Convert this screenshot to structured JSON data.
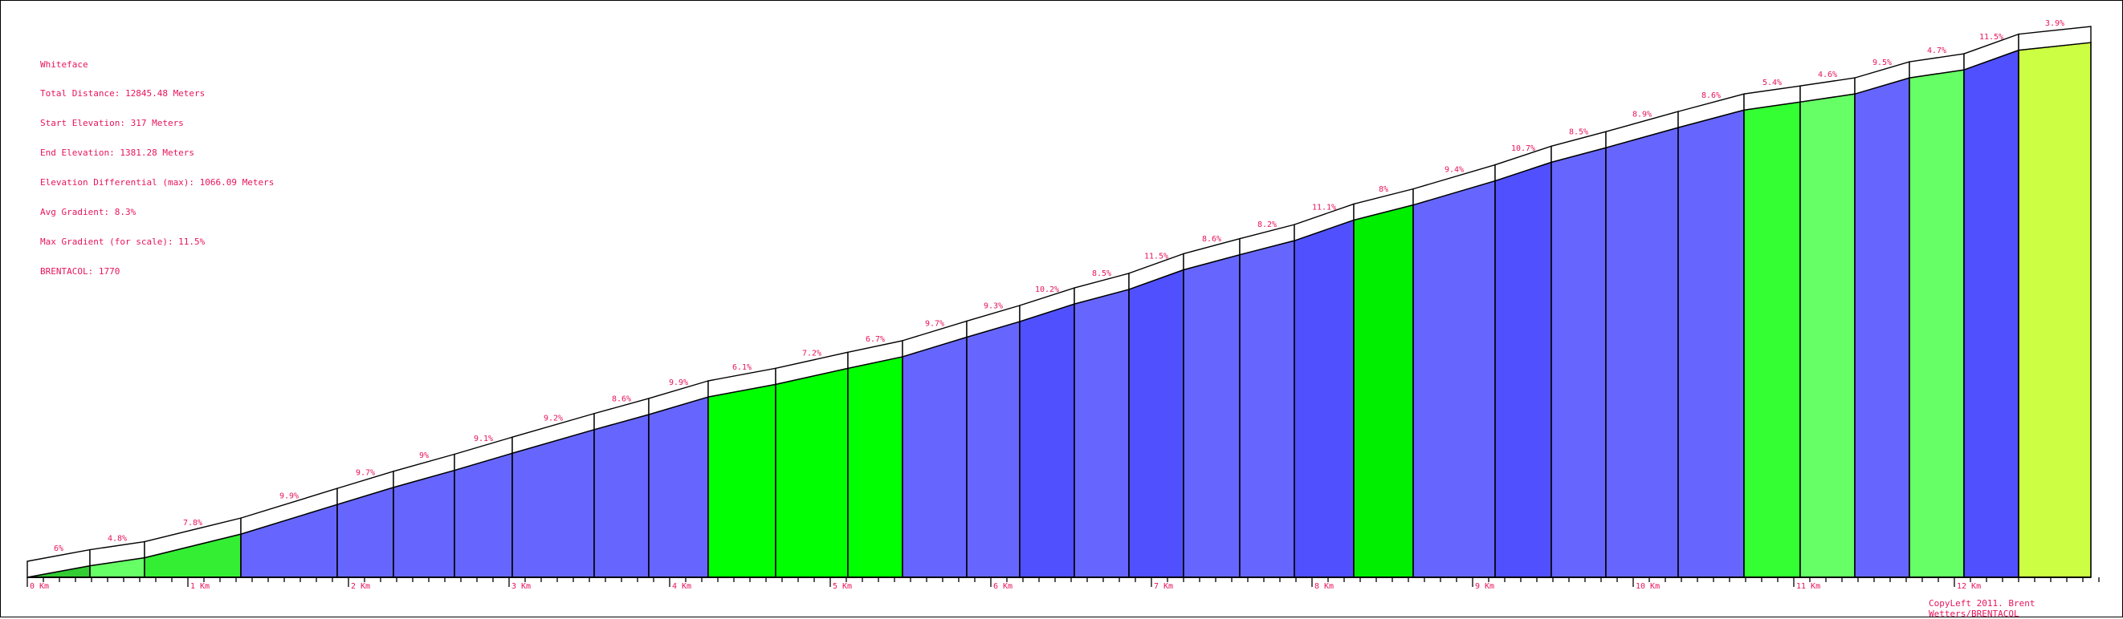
{
  "info": {
    "name": "Whiteface",
    "total_distance": "Total Distance: 12845.48 Meters",
    "start_elevation": "Start Elevation: 317 Meters",
    "end_elevation": "End Elevation: 1381.28 Meters",
    "elevation_differential": "Elevation Differential (max): 1066.09 Meters",
    "avg_gradient": "Avg Gradient: 8.3%",
    "max_gradient": "Max Gradient (for scale): 11.5%",
    "brentacol": "BRENTACOL: 1770"
  },
  "copyright": "CopyLeft 2011. Brent Wetters/BRENTACOL",
  "colors": {
    "label": "#e8145a",
    "outline": "#000000"
  },
  "chart_data": {
    "type": "area",
    "xlabel": "",
    "ylabel": "",
    "xlim": [
      0,
      12.85
    ],
    "x_unit": "Km",
    "x_ticks": [
      "0 Km",
      "1 Km",
      "2 Km",
      "3 Km",
      "4 Km",
      "5 Km",
      "6 Km",
      "7 Km",
      "8 Km",
      "9 Km",
      "10 Km",
      "11 Km",
      "12 Km"
    ],
    "segments": [
      {
        "x0": 0.0,
        "x1": 0.39,
        "y0": 317,
        "y1": 340,
        "label": "6%",
        "color": "#33cc33"
      },
      {
        "x0": 0.39,
        "x1": 0.73,
        "y0": 340,
        "y1": 356,
        "label": "4.8%",
        "color": "#66ff66"
      },
      {
        "x0": 0.73,
        "x1": 1.33,
        "y0": 356,
        "y1": 403,
        "label": "7.8%",
        "color": "#33ee33"
      },
      {
        "x0": 1.33,
        "x1": 1.93,
        "y0": 403,
        "y1": 462,
        "label": "9.9%",
        "color": "#6666ff"
      },
      {
        "x0": 1.93,
        "x1": 2.28,
        "y0": 462,
        "y1": 496,
        "label": "9.7%",
        "color": "#6666ff"
      },
      {
        "x0": 2.28,
        "x1": 2.66,
        "y0": 496,
        "y1": 530,
        "label": "9%",
        "color": "#6666ff"
      },
      {
        "x0": 2.66,
        "x1": 3.02,
        "y0": 530,
        "y1": 564,
        "label": "9.1%",
        "color": "#6666ff"
      },
      {
        "x0": 3.02,
        "x1": 3.53,
        "y0": 564,
        "y1": 611,
        "label": "9.2%",
        "color": "#6666ff"
      },
      {
        "x0": 3.53,
        "x1": 3.87,
        "y0": 611,
        "y1": 641,
        "label": "8.6%",
        "color": "#6666ff"
      },
      {
        "x0": 3.87,
        "x1": 4.24,
        "y0": 641,
        "y1": 676,
        "label": "9.9%",
        "color": "#6666ff"
      },
      {
        "x0": 4.24,
        "x1": 4.66,
        "y0": 676,
        "y1": 701,
        "label": "6.1%",
        "color": "#00ff00"
      },
      {
        "x0": 4.66,
        "x1": 5.11,
        "y0": 701,
        "y1": 733,
        "label": "7.2%",
        "color": "#00ff00"
      },
      {
        "x0": 5.11,
        "x1": 5.45,
        "y0": 733,
        "y1": 756,
        "label": "6.7%",
        "color": "#00ff00"
      },
      {
        "x0": 5.45,
        "x1": 5.85,
        "y0": 756,
        "y1": 795,
        "label": "9.7%",
        "color": "#6666ff"
      },
      {
        "x0": 5.85,
        "x1": 6.18,
        "y0": 795,
        "y1": 826,
        "label": "9.3%",
        "color": "#6666ff"
      },
      {
        "x0": 6.18,
        "x1": 6.52,
        "y0": 826,
        "y1": 861,
        "label": "10.2%",
        "color": "#5050ff"
      },
      {
        "x0": 6.52,
        "x1": 6.86,
        "y0": 861,
        "y1": 890,
        "label": "8.5%",
        "color": "#6666ff"
      },
      {
        "x0": 6.86,
        "x1": 7.2,
        "y0": 890,
        "y1": 929,
        "label": "11.5%",
        "color": "#5050ff"
      },
      {
        "x0": 7.2,
        "x1": 7.55,
        "y0": 929,
        "y1": 959,
        "label": "8.6%",
        "color": "#6666ff"
      },
      {
        "x0": 7.55,
        "x1": 7.89,
        "y0": 959,
        "y1": 987,
        "label": "8.2%",
        "color": "#6666ff"
      },
      {
        "x0": 7.89,
        "x1": 8.26,
        "y0": 987,
        "y1": 1028,
        "label": "11.1%",
        "color": "#5050ff"
      },
      {
        "x0": 8.26,
        "x1": 8.63,
        "y0": 1028,
        "y1": 1058,
        "label": "8%",
        "color": "#00ee00"
      },
      {
        "x0": 8.63,
        "x1": 9.14,
        "y0": 1058,
        "y1": 1106,
        "label": "9.4%",
        "color": "#6666ff"
      },
      {
        "x0": 9.14,
        "x1": 9.49,
        "y0": 1106,
        "y1": 1143,
        "label": "10.7%",
        "color": "#5050ff"
      },
      {
        "x0": 9.49,
        "x1": 9.83,
        "y0": 1143,
        "y1": 1172,
        "label": "8.5%",
        "color": "#6666ff"
      },
      {
        "x0": 9.83,
        "x1": 10.28,
        "y0": 1172,
        "y1": 1212,
        "label": "8.9%",
        "color": "#6666ff"
      },
      {
        "x0": 10.28,
        "x1": 10.69,
        "y0": 1212,
        "y1": 1247,
        "label": "8.6%",
        "color": "#6666ff"
      },
      {
        "x0": 10.69,
        "x1": 11.04,
        "y0": 1247,
        "y1": 1263,
        "label": "5.4%",
        "color": "#33ff33"
      },
      {
        "x0": 11.04,
        "x1": 11.38,
        "y0": 1263,
        "y1": 1279,
        "label": "4.6%",
        "color": "#66ff66"
      },
      {
        "x0": 11.38,
        "x1": 11.72,
        "y0": 1279,
        "y1": 1311,
        "label": "9.5%",
        "color": "#6666ff"
      },
      {
        "x0": 11.72,
        "x1": 12.06,
        "y0": 1311,
        "y1": 1327,
        "label": "4.7%",
        "color": "#66ff66"
      },
      {
        "x0": 12.06,
        "x1": 12.4,
        "y0": 1327,
        "y1": 1366,
        "label": "11.5%",
        "color": "#5050ff"
      },
      {
        "x0": 12.4,
        "x1": 12.85,
        "y0": 1366,
        "y1": 1381.28,
        "label": "3.9%",
        "color": "#ccff44"
      }
    ]
  }
}
